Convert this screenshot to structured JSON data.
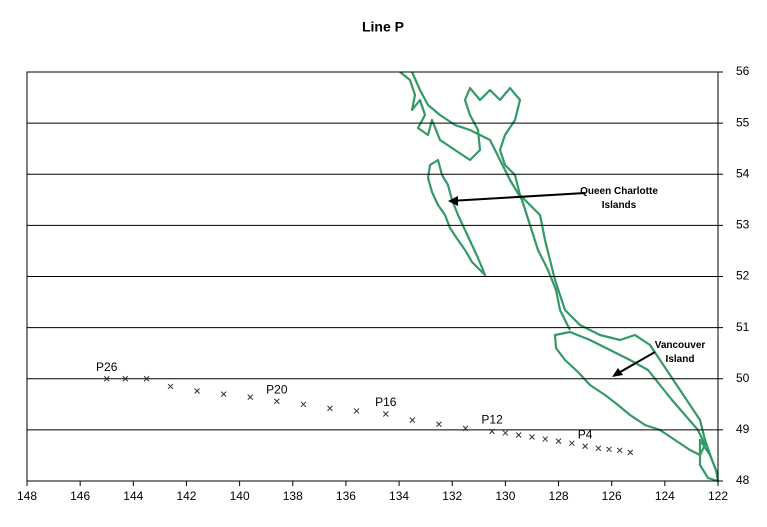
{
  "chart_data": {
    "type": "scatter",
    "title": "Line P",
    "x": [
      145.0,
      144.3,
      143.5,
      142.6,
      141.6,
      140.6,
      139.6,
      138.6,
      137.6,
      136.6,
      135.6,
      134.5,
      133.5,
      132.5,
      131.5,
      130.5,
      130.0,
      129.5,
      129.0,
      128.5,
      128.0,
      127.5,
      127.0,
      126.5,
      126.1,
      125.7,
      125.3
    ],
    "values": [
      50.0,
      50.0,
      50.0,
      49.85,
      49.76,
      49.7,
      49.64,
      49.56,
      49.5,
      49.42,
      49.37,
      49.31,
      49.19,
      49.11,
      49.03,
      48.97,
      48.94,
      48.9,
      48.86,
      48.82,
      48.78,
      48.74,
      48.68,
      48.64,
      48.62,
      48.6,
      48.56
    ],
    "point_labels": [
      "P26",
      null,
      null,
      null,
      null,
      null,
      null,
      "P20",
      null,
      null,
      null,
      "P16",
      null,
      null,
      null,
      "P12",
      null,
      null,
      null,
      null,
      null,
      null,
      "P4",
      null,
      null,
      null,
      null
    ],
    "color": "#333333",
    "xlim": [
      148,
      122
    ],
    "xticks": [
      148,
      146,
      144,
      142,
      140,
      138,
      136,
      134,
      132,
      130,
      128,
      126,
      124,
      122
    ],
    "ylim": [
      48,
      56
    ],
    "yticks": [
      48,
      49,
      50,
      51,
      52,
      53,
      54,
      55,
      56
    ],
    "grid": true,
    "annotations": [
      "Queen Charlotte Islands",
      "Vancouver Island"
    ]
  }
}
